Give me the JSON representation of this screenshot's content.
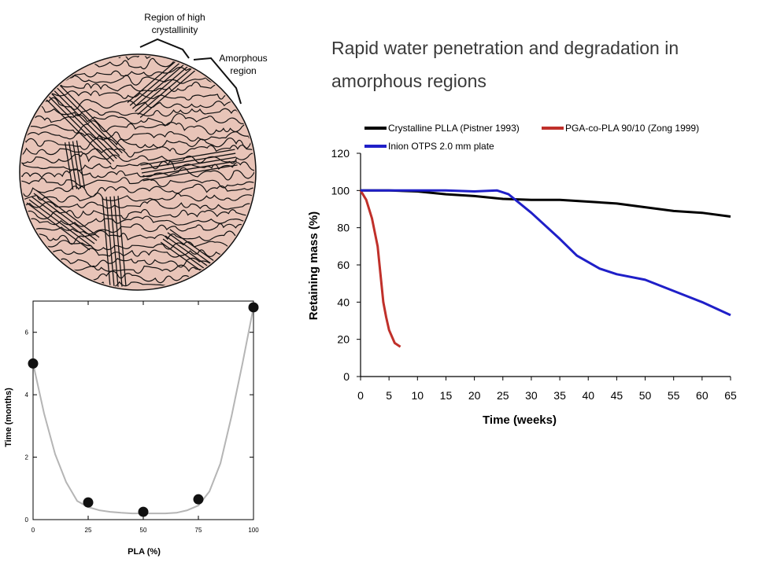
{
  "headline": {
    "line1": "Rapid water penetration and degradation in",
    "line2": "amorphous regions"
  },
  "diagram": {
    "label_crystalline_1": "Region of high",
    "label_crystalline_2": "crystallinity",
    "label_amorphous_1": "Amorphous",
    "label_amorphous_2": "region",
    "fill_color": "#e8c4b8",
    "stroke_color": "#111111"
  },
  "chart_data": [
    {
      "id": "mass-retention",
      "type": "line",
      "title": "",
      "xlabel": "Time (weeks)",
      "ylabel": "Retaining mass (%)",
      "xlim": [
        0,
        65
      ],
      "ylim": [
        0,
        120
      ],
      "xticks": [
        "0",
        "5",
        "10",
        "15",
        "20",
        "25",
        "30",
        "35",
        "40",
        "45",
        "50",
        "55",
        "60",
        "65"
      ],
      "yticks": [
        "0",
        "20",
        "40",
        "60",
        "80",
        "100",
        "120"
      ],
      "legend_position": "top",
      "series": [
        {
          "name": "Crystalline PLLA (Pistner 1993)",
          "color": "#000000",
          "x": [
            0,
            5,
            10,
            15,
            20,
            25,
            30,
            35,
            40,
            45,
            50,
            55,
            60,
            65
          ],
          "y": [
            100,
            100,
            99.5,
            98,
            97,
            95.5,
            95,
            95,
            94,
            93,
            91,
            89,
            88,
            86
          ]
        },
        {
          "name": "PGA-co-PLA 90/10 (Zong 1999)",
          "color": "#c0302a",
          "x": [
            0,
            1,
            2,
            3,
            3.5,
            4,
            4.5,
            5,
            6,
            7
          ],
          "y": [
            100,
            95,
            85,
            70,
            55,
            40,
            32,
            25,
            18,
            16
          ]
        },
        {
          "name": "Inion OTPS 2.0 mm plate",
          "color": "#1f1fc8",
          "x": [
            0,
            5,
            10,
            15,
            20,
            24,
            26,
            30,
            35,
            38,
            42,
            45,
            50,
            55,
            60,
            65
          ],
          "y": [
            100,
            100,
            100,
            100,
            99.5,
            100,
            98,
            88,
            74,
            65,
            58,
            55,
            52,
            46,
            40,
            33
          ]
        }
      ]
    },
    {
      "id": "degradation-time",
      "type": "scatter",
      "title": "",
      "xlabel": "PLA (%)",
      "ylabel": "Time (months)",
      "xlim": [
        0,
        100
      ],
      "ylim": [
        0,
        7
      ],
      "xticks": [
        "0",
        "25",
        "50",
        "75",
        "100"
      ],
      "yticks": [
        "0",
        "2",
        "4",
        "6"
      ],
      "points": {
        "x": [
          0,
          25,
          50,
          75,
          100
        ],
        "y": [
          5,
          0.55,
          0.25,
          0.65,
          6.8
        ]
      },
      "fit_curve": {
        "color": "#b5b5b5",
        "x": [
          0,
          5,
          10,
          15,
          20,
          25,
          30,
          35,
          40,
          45,
          50,
          55,
          60,
          65,
          70,
          75,
          80,
          85,
          90,
          95,
          100
        ],
        "y": [
          5,
          3.4,
          2.1,
          1.2,
          0.6,
          0.4,
          0.3,
          0.25,
          0.22,
          0.2,
          0.2,
          0.2,
          0.2,
          0.22,
          0.3,
          0.45,
          0.9,
          1.8,
          3.3,
          5.0,
          6.8
        ]
      }
    }
  ]
}
